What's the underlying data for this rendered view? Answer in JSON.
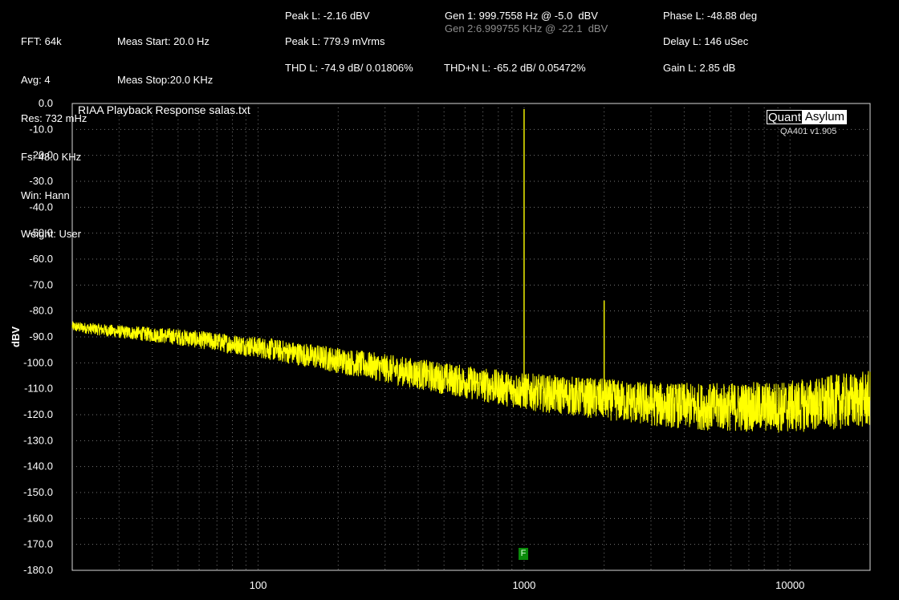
{
  "header": {
    "col1": [
      "FFT: 64k",
      "Avg: 4",
      "Res: 732 mHz",
      "Fs: 48.0 KHz",
      "Win: Hann",
      "Weight: User"
    ],
    "meas_start": "Meas Start: 20.0 Hz",
    "meas_stop": "Meas Stop:20.0 KHz",
    "peak_l_dbv": "Peak L: -2.16 dBV",
    "peak_l_mvrms": "Peak L: 779.9 mVrms",
    "thd_l": "THD L: -74.9 dB/ 0.01806%",
    "gen1": "Gen 1: 999.7558 Hz @ -5.0  dBV",
    "gen2": "Gen 2:6.999755 KHz @ -22.1  dBV",
    "thdn_l": "THD+N L: -65.2 dB/ 0.05472%",
    "phase_l": "Phase L: -48.88 deg",
    "delay_l": "Delay L: 146 uSec",
    "gain_l": "Gain L: 2.85 dB"
  },
  "logo": {
    "part1": "Quant",
    "part2": "Asylum",
    "version": "QA401 v1.905"
  },
  "marker_label": "F",
  "chart_data": {
    "type": "line",
    "title": "RIAA Playback Response salas.txt",
    "xlabel": "",
    "ylabel": "dBV",
    "x_scale": "log",
    "xlim": [
      20,
      20000
    ],
    "ylim": [
      -180,
      0
    ],
    "y_ticks": [
      "0.0",
      "-10.0",
      "-20.0",
      "-30.0",
      "-40.0",
      "-50.0",
      "-60.0",
      "-70.0",
      "-80.0",
      "-90.0",
      "-100.0",
      "-110.0",
      "-120.0",
      "-130.0",
      "-140.0",
      "-150.0",
      "-160.0",
      "-170.0",
      "-180.0"
    ],
    "x_ticks": [
      {
        "value": 100,
        "label": "100"
      },
      {
        "value": 1000,
        "label": "1000"
      },
      {
        "value": 10000,
        "label": "10000"
      }
    ],
    "grid": true,
    "line_color": "#ffff00",
    "noise_floor": {
      "x": [
        20,
        30,
        50,
        100,
        200,
        500,
        1000,
        2000,
        3000,
        5000,
        10000,
        15000,
        20000
      ],
      "y": [
        -86,
        -88,
        -90,
        -94,
        -99,
        -106,
        -111,
        -114,
        -116,
        -117,
        -117,
        -115,
        -114
      ]
    },
    "peaks": [
      {
        "x": 1000,
        "y": -2.16
      },
      {
        "x": 2000,
        "y": -76
      },
      {
        "x": 3000,
        "y": -107
      },
      {
        "x": 10000,
        "y": -109
      }
    ]
  }
}
